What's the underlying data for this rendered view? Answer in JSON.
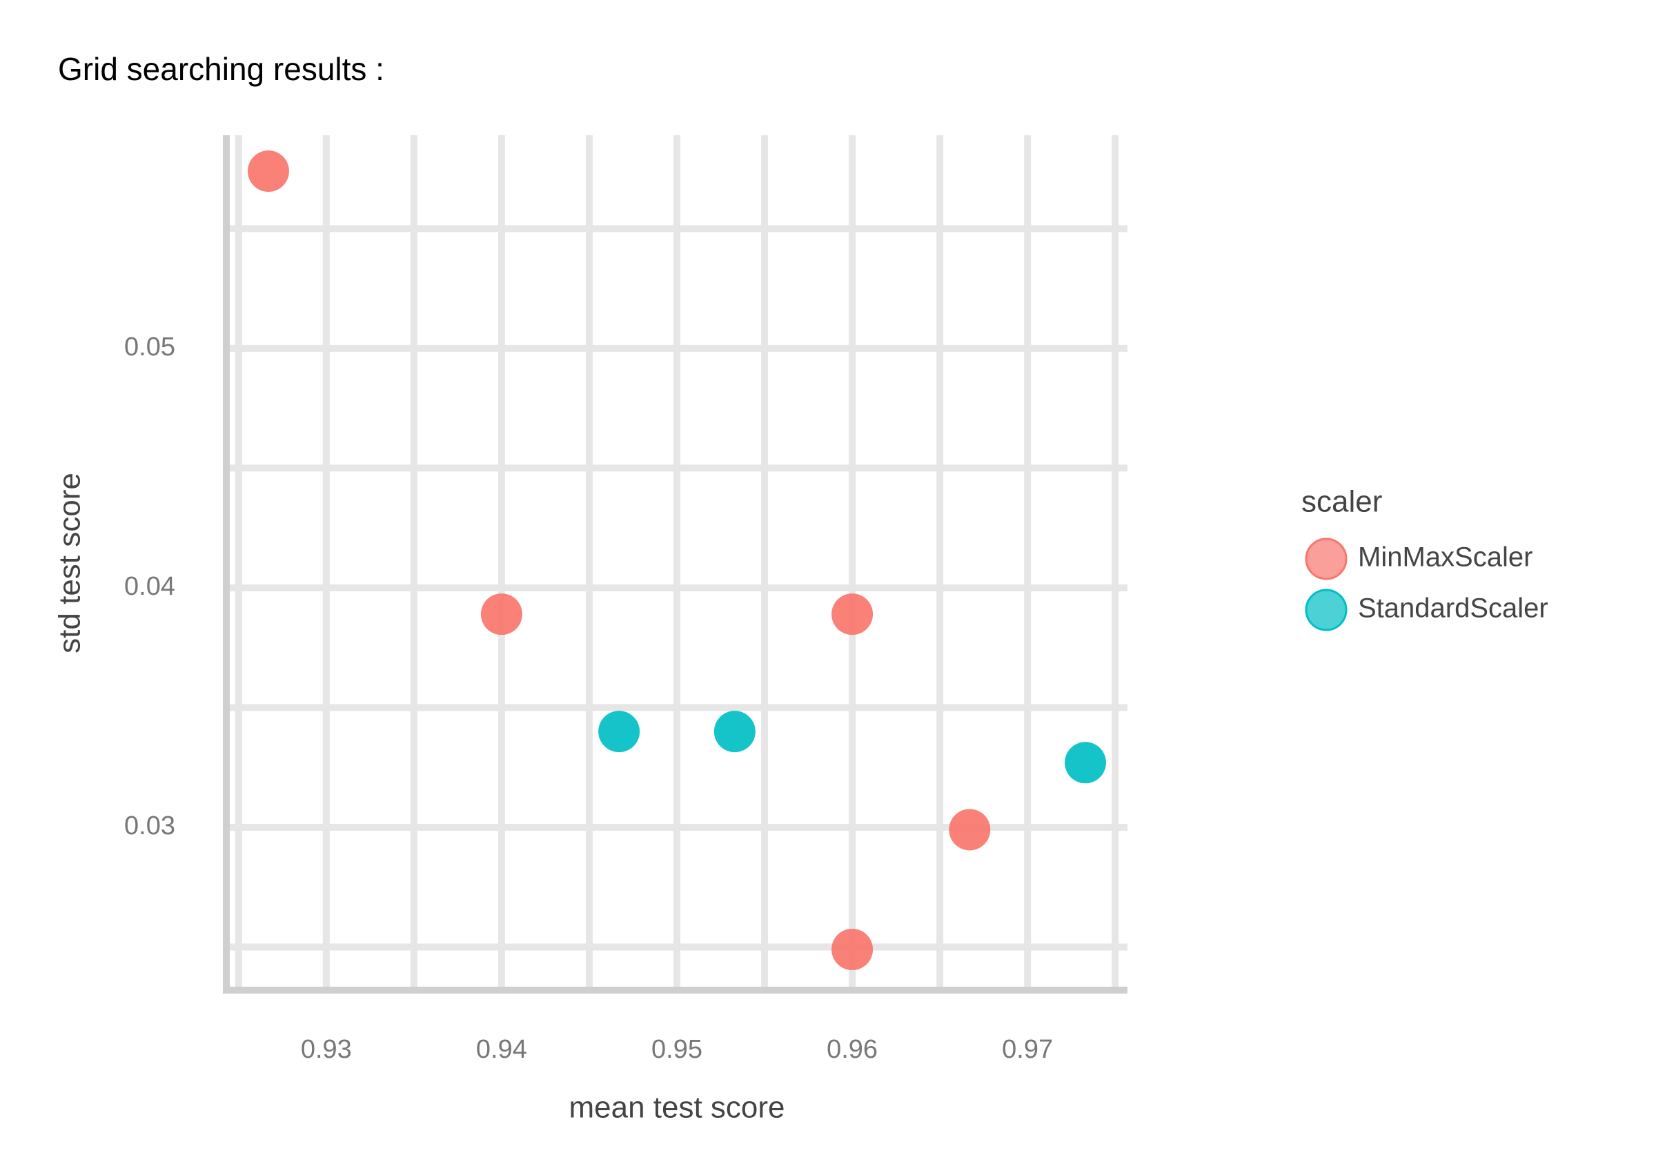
{
  "chart_data": {
    "type": "scatter",
    "title": "Grid searching results :",
    "x_label": "mean test score",
    "y_label": "std test score",
    "legend_title": "scaler",
    "legend_position": "right",
    "series": [
      {
        "name": "MinMaxScaler",
        "color": "#F8766D",
        "x": [
          0.9267,
          0.94,
          0.96,
          0.9667,
          0.96
        ],
        "values": [
          0.0574,
          0.0389,
          0.0389,
          0.0299,
          0.0249
        ]
      },
      {
        "name": "StandardScaler",
        "color": "#00BFC4",
        "x": [
          0.9467,
          0.9533,
          0.9733
        ],
        "values": [
          0.034,
          0.034,
          0.0327
        ]
      }
    ],
    "xlim": [
      0.9243,
      0.9757
    ],
    "ylim": [
      0.0232,
      0.0589
    ],
    "xticks": [
      0.93,
      0.94,
      0.95,
      0.96,
      0.97
    ],
    "yticks": [
      0.03,
      0.04,
      0.05
    ],
    "xminorticks": [
      0.925,
      0.935,
      0.945,
      0.955,
      0.965,
      0.975
    ],
    "yminorticks": [
      0.025,
      0.035,
      0.045,
      0.055
    ],
    "grid": true
  }
}
